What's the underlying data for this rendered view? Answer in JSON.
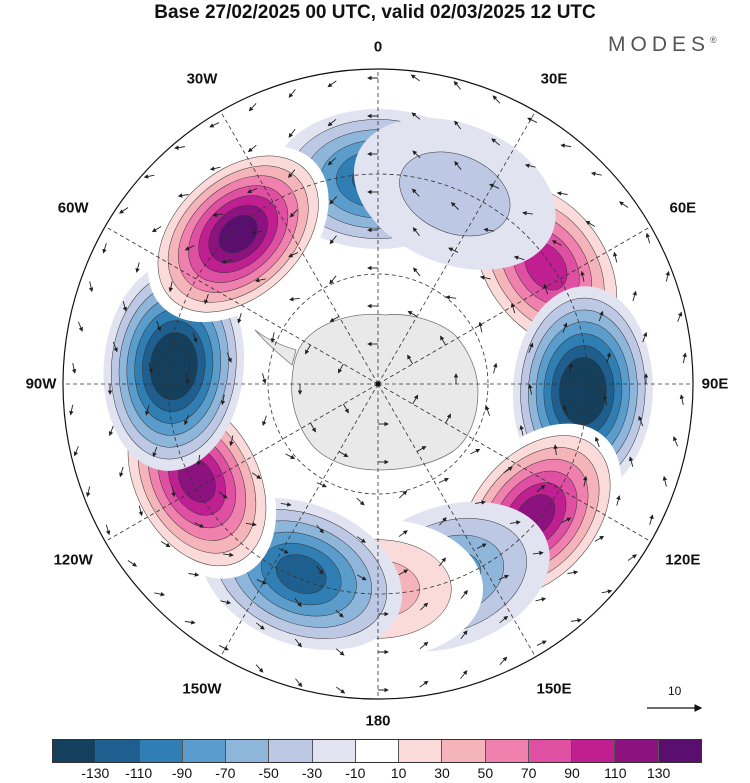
{
  "title": "Base 27/02/2025 00 UTC, valid 02/03/2025 12 UTC",
  "brand": "MODES",
  "brand_mark": "®",
  "longitude_labels": [
    "0",
    "30E",
    "60E",
    "90E",
    "120E",
    "150E",
    "180",
    "150W",
    "120W",
    "90W",
    "60W",
    "30W"
  ],
  "reference_vector_label": "10",
  "colorbar": {
    "colors": [
      "#14405e",
      "#1e5f8f",
      "#2f7fb5",
      "#5a9ccc",
      "#8eb5da",
      "#bdc9e4",
      "#e1e3f1",
      "#ffffff",
      "#fbdada",
      "#f5b4b9",
      "#f081ae",
      "#df4fa2",
      "#c01f91",
      "#8c137f",
      "#5a0f6e"
    ],
    "tick_labels": [
      "-130",
      "-110",
      "-90",
      "-70",
      "-50",
      "-30",
      "-10",
      "10",
      "30",
      "50",
      "70",
      "90",
      "110",
      "130"
    ]
  },
  "map_data": {
    "projection": "south-polar-stereographic",
    "anomaly_centers": [
      {
        "lon_deg": 0,
        "value": -90
      },
      {
        "lon_deg": 55,
        "value": 90
      },
      {
        "lon_deg": 92,
        "value": -130
      },
      {
        "lon_deg": 130,
        "value": 110
      },
      {
        "lon_deg": 160,
        "value": -50
      },
      {
        "lon_deg": 180,
        "value": 30
      },
      {
        "lon_deg": -158,
        "value": -90
      },
      {
        "lon_deg": -118,
        "value": 110
      },
      {
        "lon_deg": -85,
        "value": -130
      },
      {
        "lon_deg": -43,
        "value": 130
      },
      {
        "lon_deg": 22,
        "value": -10
      }
    ]
  }
}
